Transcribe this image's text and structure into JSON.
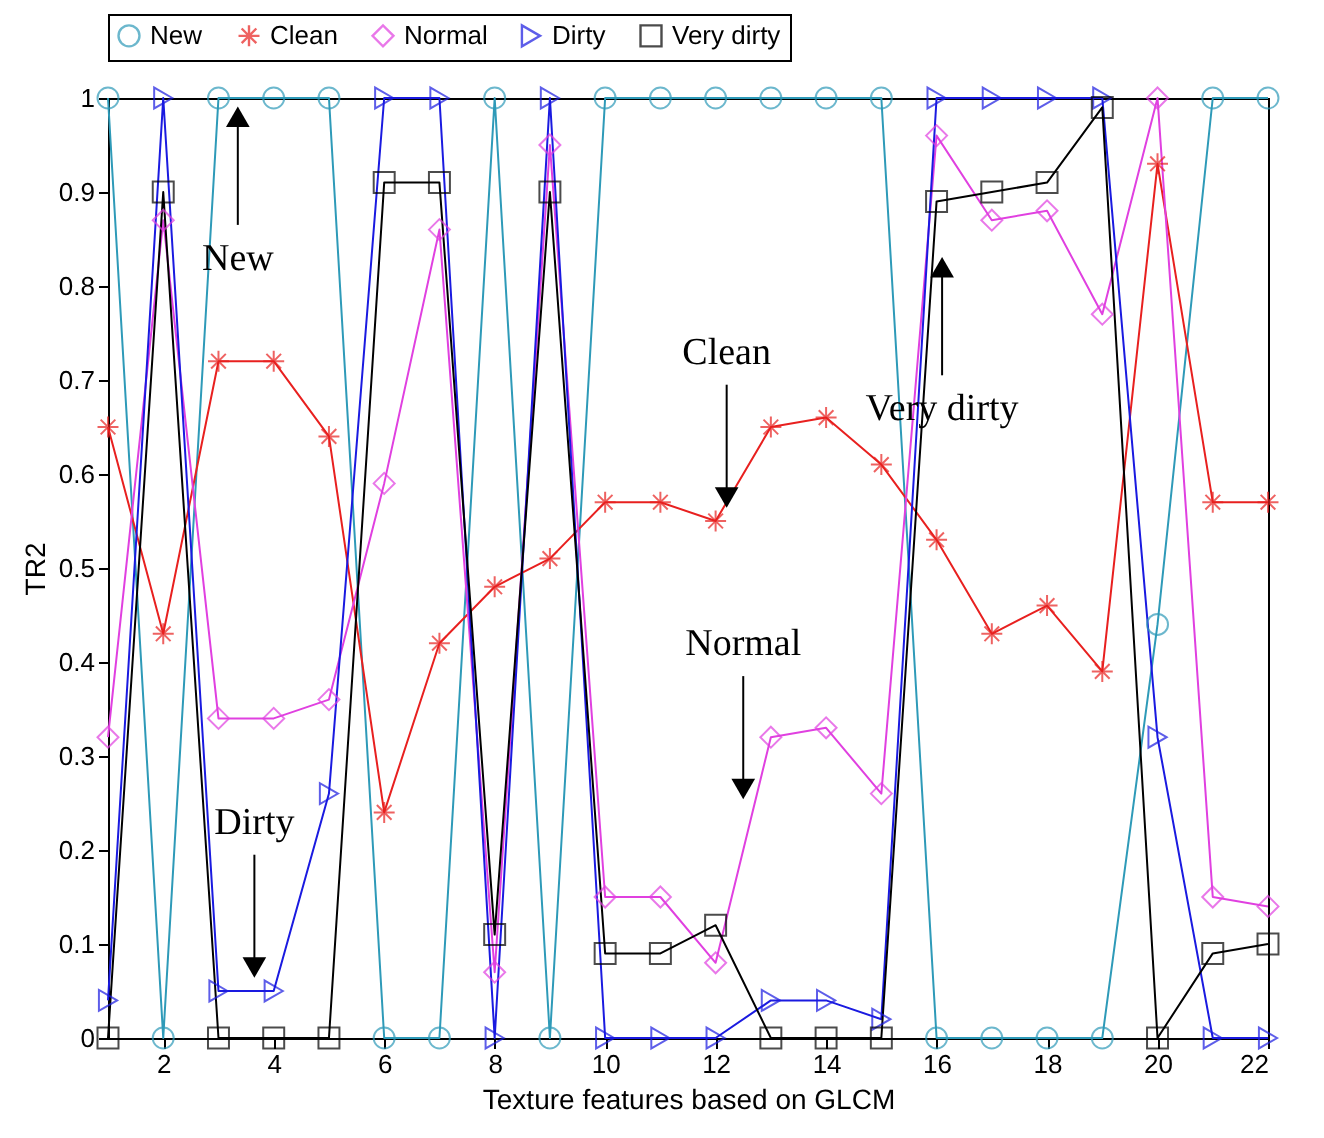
{
  "chart_data": {
    "type": "line",
    "xlabel": "Texture features based on GLCM",
    "ylabel": "TR2",
    "x": [
      1,
      2,
      3,
      4,
      5,
      6,
      7,
      8,
      9,
      10,
      11,
      12,
      13,
      14,
      15,
      16,
      17,
      18,
      19,
      20,
      21,
      22
    ],
    "series": [
      {
        "name": "New",
        "color": "#2e9ab8",
        "marker": "circle",
        "values": [
          1,
          0,
          1,
          1,
          1,
          0,
          0,
          1,
          0,
          1,
          1,
          1,
          1,
          1,
          1,
          0,
          0,
          0,
          0,
          0.44,
          1,
          1
        ]
      },
      {
        "name": "Clean",
        "color": "#e8201f",
        "marker": "cross",
        "values": [
          0.65,
          0.43,
          0.72,
          0.72,
          0.64,
          0.24,
          0.42,
          0.48,
          0.51,
          0.57,
          0.57,
          0.55,
          0.65,
          0.66,
          0.61,
          0.53,
          0.43,
          0.46,
          0.39,
          0.93,
          0.57,
          0.57
        ]
      },
      {
        "name": "Normal",
        "color": "#e040e0",
        "marker": "diamond",
        "values": [
          0.32,
          0.87,
          0.34,
          0.34,
          0.36,
          0.59,
          0.86,
          0.07,
          0.95,
          0.15,
          0.15,
          0.08,
          0.32,
          0.33,
          0.26,
          0.96,
          0.87,
          0.88,
          0.77,
          1,
          0.15,
          0.14
        ]
      },
      {
        "name": "Dirty",
        "color": "#1a1ae0",
        "marker": "triangle",
        "values": [
          0.04,
          1,
          0.05,
          0.05,
          0.26,
          1,
          1,
          0,
          1,
          0,
          0,
          0,
          0.04,
          0.04,
          0.02,
          1,
          1,
          1,
          1,
          0.32,
          0,
          0
        ]
      },
      {
        "name": "Very dirty",
        "color": "#000000",
        "marker": "square",
        "values": [
          0,
          0.9,
          0,
          0,
          0,
          0.91,
          0.91,
          0.11,
          0.9,
          0.09,
          0.09,
          0.12,
          0,
          0,
          0,
          0.89,
          0.9,
          0.91,
          0.99,
          0,
          0.09,
          0.1
        ]
      }
    ],
    "xlim": [
      1,
      22
    ],
    "xticks": [
      2,
      4,
      6,
      8,
      10,
      12,
      14,
      16,
      18,
      20,
      22
    ],
    "ylim": [
      0,
      1
    ],
    "yticks": [
      0,
      0.1,
      0.2,
      0.3,
      0.4,
      0.5,
      0.6,
      0.7,
      0.8,
      0.9,
      1
    ],
    "grid": false,
    "legend": "top",
    "annotations": [
      {
        "text": "New",
        "x": 3.35,
        "y": 1
      },
      {
        "text": "Clean",
        "x": 12.2,
        "y": 0.56
      },
      {
        "text": "Normal",
        "x": 12.5,
        "y": 0.25
      },
      {
        "text": "Very dirty",
        "x": 16.1,
        "y": 0.84
      },
      {
        "text": "Dirty",
        "x": 3.65,
        "y": 0.06
      }
    ]
  }
}
